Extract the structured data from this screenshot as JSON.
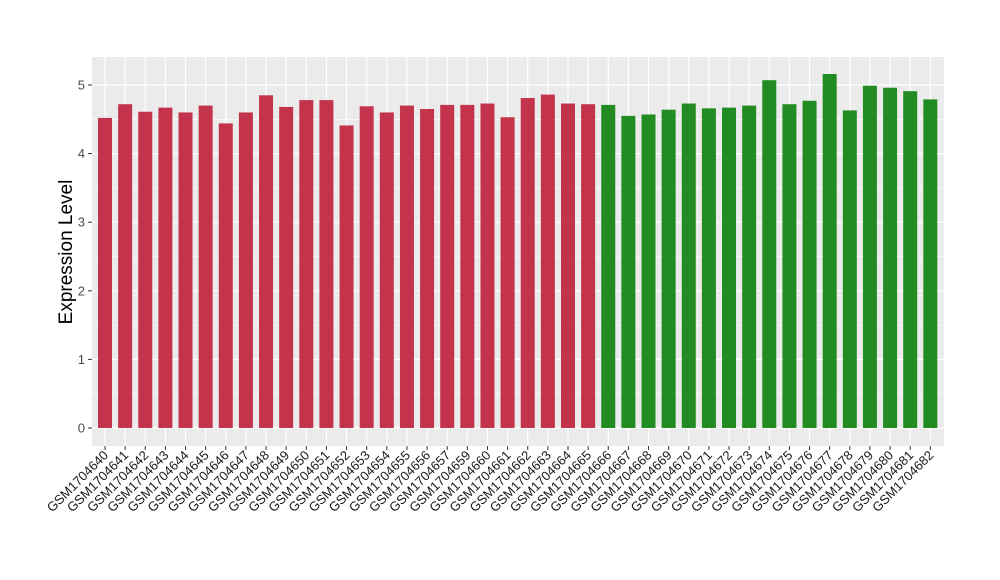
{
  "chart_data": {
    "type": "bar",
    "title": "",
    "xlabel": "",
    "ylabel": "Expression Level",
    "ylim": [
      0,
      5.4
    ],
    "yticks": [
      0,
      1,
      2,
      3,
      4,
      5
    ],
    "grid": true,
    "legend": "none",
    "categories": [
      "GSM1704640",
      "GSM1704641",
      "GSM1704642",
      "GSM1704643",
      "GSM1704644",
      "GSM1704645",
      "GSM1704646",
      "GSM1704647",
      "GSM1704648",
      "GSM1704649",
      "GSM1704650",
      "GSM1704651",
      "GSM1704652",
      "GSM1704653",
      "GSM1704654",
      "GSM1704655",
      "GSM1704656",
      "GSM1704657",
      "GSM1704659",
      "GSM1704660",
      "GSM1704661",
      "GSM1704662",
      "GSM1704663",
      "GSM1704664",
      "GSM1704665",
      "GSM1704666",
      "GSM1704667",
      "GSM1704668",
      "GSM1704669",
      "GSM1704670",
      "GSM1704671",
      "GSM1704672",
      "GSM1704673",
      "GSM1704674",
      "GSM1704675",
      "GSM1704676",
      "GSM1704677",
      "GSM1704678",
      "GSM1704679",
      "GSM1704680",
      "GSM1704681",
      "GSM1704682"
    ],
    "values": [
      4.52,
      4.72,
      4.61,
      4.67,
      4.6,
      4.7,
      4.44,
      4.6,
      4.85,
      4.68,
      4.78,
      4.78,
      4.41,
      4.69,
      4.6,
      4.7,
      4.65,
      4.71,
      4.71,
      4.73,
      4.53,
      4.81,
      4.86,
      4.73,
      4.72,
      4.71,
      4.55,
      4.57,
      4.64,
      4.73,
      4.66,
      4.67,
      4.7,
      5.07,
      4.72,
      4.77,
      5.16,
      4.63,
      4.99,
      4.96,
      4.91,
      4.79
    ],
    "group_sizes": [
      25,
      17
    ],
    "colors": [
      "#c3334b",
      "#228b22"
    ],
    "panel_background": "#ebebeb",
    "gridline_color": "#ffffff"
  }
}
